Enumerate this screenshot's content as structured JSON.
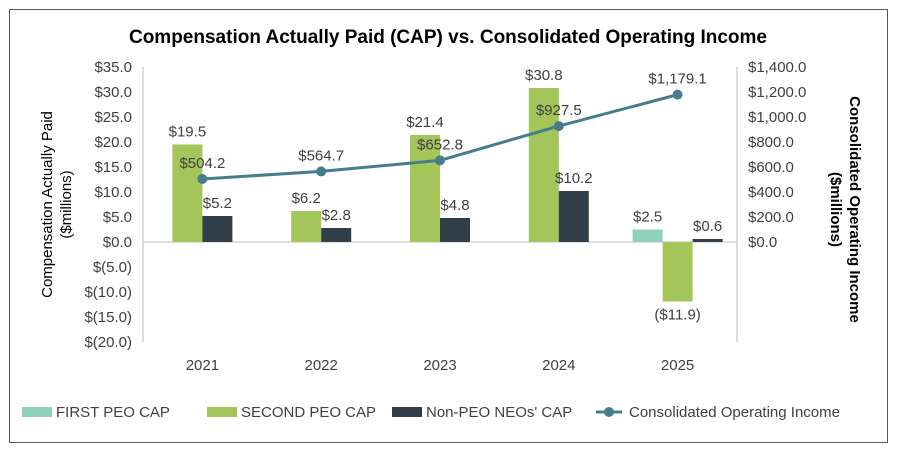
{
  "chart_data": {
    "type": "bar",
    "title": "Compensation Actually Paid (CAP) vs. Consolidated Operating Income",
    "categories": [
      "2021",
      "2022",
      "2023",
      "2024",
      "2025"
    ],
    "ylabel_lines": [
      "Compensation Actually Paid",
      "($millions)"
    ],
    "y2label_lines": [
      "Consolidated Operating Income",
      "($millions)"
    ],
    "ylim": [
      -20,
      35
    ],
    "y2lim": [
      -800,
      1400
    ],
    "yticks": [
      35,
      30,
      25,
      20,
      15,
      10,
      5,
      0,
      -5,
      -10,
      -15,
      -20
    ],
    "ytick_labels": [
      "$35.0",
      "$30.0",
      "$25.0",
      "$20.0",
      "$15.0",
      "$10.0",
      "$5.0",
      "$0.0",
      "$(5.0)",
      "$(10.0)",
      "$(15.0)",
      "$(20.0)"
    ],
    "y2ticks": [
      1400,
      1200,
      1000,
      800,
      600,
      400,
      200,
      0
    ],
    "y2tick_labels": [
      "$1,400.0",
      "$1,200.0",
      "$1,000.0",
      "$800.0",
      "$600.0",
      "$400.0",
      "$200.0",
      "$0.0"
    ],
    "grid": false,
    "legend_position": "bottom",
    "series": [
      {
        "name": "FIRST PEO CAP",
        "kind": "bar",
        "axis": "left",
        "color": "#8fd1bd",
        "values": [
          null,
          null,
          null,
          null,
          2.5
        ],
        "labels": [
          "",
          "",
          "",
          "",
          "$2.5"
        ]
      },
      {
        "name": "SECOND PEO CAP",
        "kind": "bar",
        "axis": "left",
        "color": "#a4c55a",
        "values": [
          19.5,
          6.2,
          21.4,
          30.8,
          -11.9
        ],
        "labels": [
          "$19.5",
          "$6.2",
          "$21.4",
          "$30.8",
          "($11.9)"
        ]
      },
      {
        "name": "Non-PEO NEOs' CAP",
        "kind": "bar",
        "axis": "left",
        "color": "#333f48",
        "values": [
          5.2,
          2.8,
          4.8,
          10.2,
          0.6
        ],
        "labels": [
          "$5.2",
          "$2.8",
          "$4.8",
          "$10.2",
          "$0.6"
        ]
      },
      {
        "name": "Consolidated Operating Income",
        "kind": "line",
        "axis": "right",
        "color": "#457d8c",
        "values": [
          504.2,
          564.7,
          652.8,
          927.5,
          1179.1
        ],
        "labels": [
          "$504.2",
          "$564.7",
          "$652.8",
          "$927.5",
          "$1,179.1"
        ]
      }
    ]
  }
}
